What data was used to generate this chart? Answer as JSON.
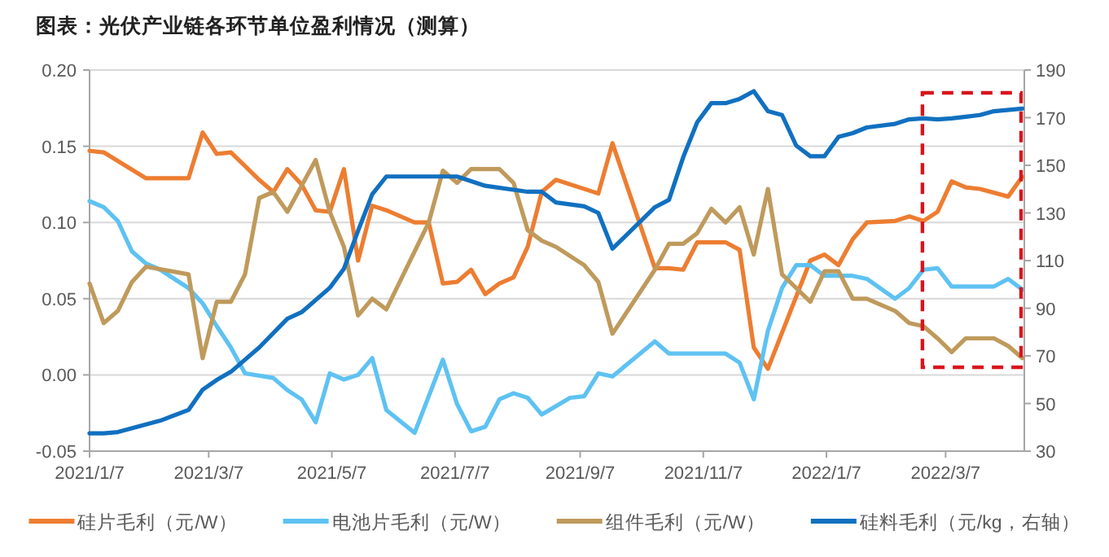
{
  "chart_data": {
    "type": "line",
    "title": "图表：光伏产业链各环节单位盈利情况（测算）",
    "xlim": [
      "2021-01-07",
      "2022-04-15"
    ],
    "xticks": [
      {
        "value": "2021-01-07",
        "label": "2021/1/7"
      },
      {
        "value": "2021-03-07",
        "label": "2021/3/7"
      },
      {
        "value": "2021-05-07",
        "label": "2021/5/7"
      },
      {
        "value": "2021-07-07",
        "label": "2021/7/7"
      },
      {
        "value": "2021-09-07",
        "label": "2021/9/7"
      },
      {
        "value": "2021-11-07",
        "label": "2021/11/7"
      },
      {
        "value": "2022-01-07",
        "label": "2022/1/7"
      },
      {
        "value": "2022-03-07",
        "label": "2022/3/7"
      }
    ],
    "ylim": [
      -0.05,
      0.2
    ],
    "yticks": [
      {
        "value": -0.05,
        "label": "-0.05"
      },
      {
        "value": 0,
        "label": "0.00"
      },
      {
        "value": 0.05,
        "label": "0.05"
      },
      {
        "value": 0.1,
        "label": "0.10"
      },
      {
        "value": 0.15,
        "label": "0.15"
      },
      {
        "value": 0.2,
        "label": "0.20"
      }
    ],
    "y2lim": [
      30,
      190
    ],
    "y2ticks": [
      30,
      50,
      70,
      90,
      110,
      130,
      150,
      170,
      190
    ],
    "grid": "y",
    "legend": "bottom",
    "series": [
      {
        "name": "硅片毛利（元/W）",
        "color": "#ed7d31",
        "x": [
          "2021-01-07",
          "2021-01-14",
          "2021-02-04",
          "2021-02-25",
          "2021-03-04",
          "2021-03-11",
          "2021-03-18",
          "2021-03-25",
          "2021-04-01",
          "2021-04-08",
          "2021-04-15",
          "2021-04-22",
          "2021-04-29",
          "2021-05-06",
          "2021-05-13",
          "2021-05-20",
          "2021-05-27",
          "2021-06-03",
          "2021-06-17",
          "2021-06-24",
          "2021-07-01",
          "2021-07-08",
          "2021-07-15",
          "2021-07-22",
          "2021-07-29",
          "2021-08-05",
          "2021-08-12",
          "2021-08-19",
          "2021-08-26",
          "2021-09-16",
          "2021-09-23",
          "2021-10-14",
          "2021-10-21",
          "2021-10-28",
          "2021-11-04",
          "2021-11-18",
          "2021-11-25",
          "2021-12-02",
          "2021-12-09",
          "2021-12-30",
          "2022-01-06",
          "2022-01-13",
          "2022-01-20",
          "2022-01-27",
          "2022-02-10",
          "2022-02-17",
          "2022-02-24",
          "2022-03-03",
          "2022-03-10",
          "2022-03-17",
          "2022-03-24",
          "2022-04-07",
          "2022-04-14"
        ],
        "values": [
          0.147,
          0.146,
          0.129,
          0.129,
          0.159,
          0.145,
          0.146,
          0.137,
          0.128,
          0.12,
          0.135,
          0.125,
          0.108,
          0.107,
          0.135,
          0.075,
          0.111,
          0.108,
          0.1,
          0.1,
          0.06,
          0.061,
          0.069,
          0.053,
          0.06,
          0.064,
          0.084,
          0.12,
          0.128,
          0.119,
          0.152,
          0.07,
          0.07,
          0.069,
          0.087,
          0.087,
          0.082,
          0.018,
          0.004,
          0.075,
          0.079,
          0.072,
          0.089,
          0.1,
          0.101,
          0.104,
          0.101,
          0.107,
          0.127,
          0.123,
          0.122,
          0.117,
          0.13
        ]
      },
      {
        "name": "电池片毛利（元/W）",
        "color": "#5ec2f2",
        "x": [
          "2021-01-07",
          "2021-01-14",
          "2021-01-21",
          "2021-01-28",
          "2021-02-04",
          "2021-02-11",
          "2021-02-25",
          "2021-03-04",
          "2021-03-11",
          "2021-03-18",
          "2021-03-25",
          "2021-04-08",
          "2021-04-15",
          "2021-04-22",
          "2021-04-29",
          "2021-05-06",
          "2021-05-13",
          "2021-05-20",
          "2021-05-27",
          "2021-06-03",
          "2021-06-17",
          "2021-07-01",
          "2021-07-08",
          "2021-07-15",
          "2021-07-22",
          "2021-07-29",
          "2021-08-05",
          "2021-08-12",
          "2021-08-19",
          "2021-09-02",
          "2021-09-09",
          "2021-09-16",
          "2021-09-23",
          "2021-10-14",
          "2021-10-21",
          "2021-11-18",
          "2021-11-25",
          "2021-12-02",
          "2021-12-09",
          "2021-12-16",
          "2021-12-23",
          "2021-12-30",
          "2022-01-06",
          "2022-01-20",
          "2022-01-27",
          "2022-02-10",
          "2022-02-17",
          "2022-02-24",
          "2022-03-03",
          "2022-03-10",
          "2022-03-31",
          "2022-04-07",
          "2022-04-14"
        ],
        "values": [
          0.114,
          0.11,
          0.101,
          0.081,
          0.073,
          0.069,
          0.057,
          0.047,
          0.032,
          0.018,
          0.001,
          -0.002,
          -0.01,
          -0.016,
          -0.031,
          0.001,
          -0.003,
          0.0,
          0.011,
          -0.023,
          -0.038,
          0.01,
          -0.019,
          -0.037,
          -0.034,
          -0.016,
          -0.012,
          -0.015,
          -0.026,
          -0.015,
          -0.014,
          0.001,
          -0.001,
          0.022,
          0.014,
          0.014,
          0.008,
          -0.016,
          0.029,
          0.057,
          0.072,
          0.072,
          0.065,
          0.065,
          0.063,
          0.05,
          0.057,
          0.069,
          0.07,
          0.058,
          0.058,
          0.063,
          0.056
        ]
      },
      {
        "name": "组件毛利（元/W）",
        "color": "#bf9a5c",
        "x": [
          "2021-01-07",
          "2021-01-14",
          "2021-01-21",
          "2021-01-28",
          "2021-02-04",
          "2021-02-25",
          "2021-03-04",
          "2021-03-11",
          "2021-03-18",
          "2021-03-25",
          "2021-04-01",
          "2021-04-08",
          "2021-04-15",
          "2021-04-29",
          "2021-05-06",
          "2021-05-13",
          "2021-05-20",
          "2021-05-27",
          "2021-06-03",
          "2021-06-24",
          "2021-07-01",
          "2021-07-08",
          "2021-07-15",
          "2021-07-29",
          "2021-08-05",
          "2021-08-12",
          "2021-08-19",
          "2021-08-26",
          "2021-09-09",
          "2021-09-16",
          "2021-09-23",
          "2021-10-14",
          "2021-10-21",
          "2021-10-28",
          "2021-11-04",
          "2021-11-11",
          "2021-11-18",
          "2021-11-25",
          "2021-12-02",
          "2021-12-09",
          "2021-12-16",
          "2021-12-23",
          "2021-12-30",
          "2022-01-06",
          "2022-01-13",
          "2022-01-20",
          "2022-01-27",
          "2022-02-10",
          "2022-02-17",
          "2022-02-24",
          "2022-03-03",
          "2022-03-10",
          "2022-03-17",
          "2022-03-31",
          "2022-04-07",
          "2022-04-14"
        ],
        "values": [
          0.06,
          0.034,
          0.042,
          0.061,
          0.071,
          0.066,
          0.011,
          0.048,
          0.048,
          0.066,
          0.116,
          0.12,
          0.107,
          0.141,
          0.107,
          0.084,
          0.039,
          0.05,
          0.043,
          0.1,
          0.134,
          0.126,
          0.135,
          0.135,
          0.126,
          0.095,
          0.088,
          0.084,
          0.072,
          0.061,
          0.027,
          0.069,
          0.086,
          0.086,
          0.093,
          0.109,
          0.1,
          0.11,
          0.079,
          0.122,
          0.066,
          0.057,
          0.048,
          0.068,
          0.068,
          0.05,
          0.05,
          0.042,
          0.034,
          0.032,
          0.024,
          0.015,
          0.024,
          0.024,
          0.019,
          0.011
        ]
      },
      {
        "name": "硅料毛利（元/kg，右轴）",
        "color": "#1170c0",
        "axis": "y2",
        "x": [
          "2021-01-07",
          "2021-01-14",
          "2021-01-21",
          "2021-02-11",
          "2021-02-25",
          "2021-03-04",
          "2021-03-11",
          "2021-03-18",
          "2021-04-01",
          "2021-04-15",
          "2021-04-22",
          "2021-05-06",
          "2021-05-13",
          "2021-05-20",
          "2021-05-27",
          "2021-06-03",
          "2021-07-08",
          "2021-07-22",
          "2021-08-12",
          "2021-08-19",
          "2021-08-26",
          "2021-09-09",
          "2021-09-16",
          "2021-09-23",
          "2021-10-14",
          "2021-10-21",
          "2021-10-28",
          "2021-11-04",
          "2021-11-11",
          "2021-11-18",
          "2021-11-25",
          "2021-12-02",
          "2021-12-09",
          "2021-12-16",
          "2021-12-23",
          "2021-12-30",
          "2022-01-06",
          "2022-01-13",
          "2022-01-20",
          "2022-01-27",
          "2022-02-10",
          "2022-02-17",
          "2022-02-24",
          "2022-03-03",
          "2022-03-10",
          "2022-03-17",
          "2022-03-24",
          "2022-03-31",
          "2022-04-14"
        ],
        "values": [
          37.5,
          37.5,
          38,
          42.8,
          47.3,
          55.8,
          59.9,
          63.3,
          73.5,
          85.6,
          88.3,
          98.6,
          106.6,
          122.5,
          137.8,
          145.3,
          145.3,
          141.4,
          138.9,
          138.9,
          134.4,
          132.8,
          130,
          115,
          132.4,
          135.5,
          153.3,
          168.1,
          176.1,
          176.1,
          177.9,
          181.1,
          172.7,
          171.1,
          158.3,
          153.8,
          153.8,
          162,
          163.5,
          165.9,
          167.4,
          169.3,
          169.7,
          169.3,
          169.7,
          170.4,
          171.1,
          172.7,
          173.8
        ]
      }
    ]
  }
}
